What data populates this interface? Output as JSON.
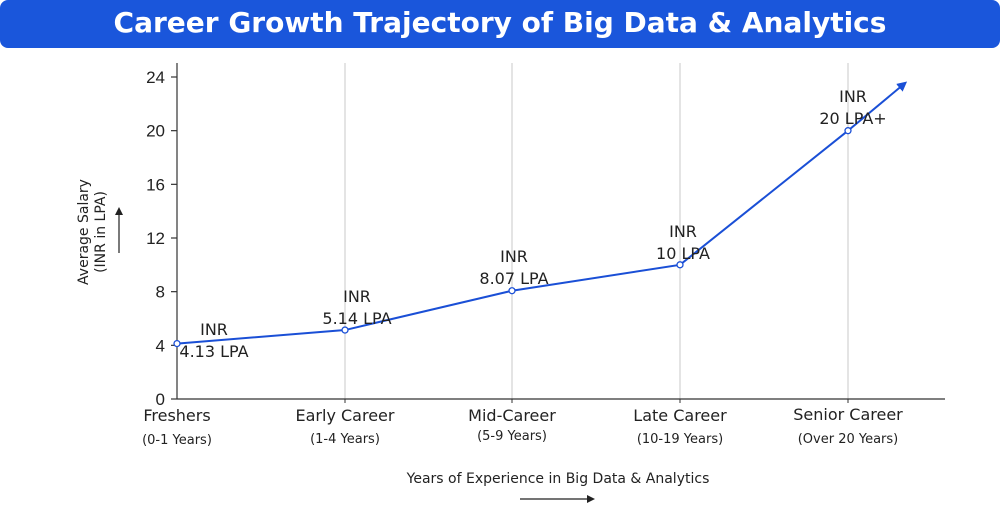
{
  "title": "Career Growth Trajectory of Big Data & Analytics",
  "chart_data": {
    "type": "line",
    "title": "Career Growth Trajectory of Big Data & Analytics",
    "xlabel": "Years of Experience in Big Data & Analytics",
    "ylabel_lines": [
      "Average Salary",
      "(INR in LPA)"
    ],
    "ylim": [
      0,
      24
    ],
    "yticks": [
      0,
      4,
      8,
      12,
      16,
      20,
      24
    ],
    "grid": "vertical",
    "categories": [
      {
        "name": "Freshers",
        "sub": "(0-1 Years)"
      },
      {
        "name": "Early Career",
        "sub": "(1-4 Years)"
      },
      {
        "name": "Mid-Career",
        "sub": "(5-9 Years)"
      },
      {
        "name": "Late Career",
        "sub": "(10-19 Years)"
      },
      {
        "name": "Senior Career",
        "sub": "(Over 20 Years)"
      }
    ],
    "values": [
      4.13,
      5.14,
      8.07,
      10,
      20
    ],
    "labels": [
      [
        "INR",
        "4.13 LPA"
      ],
      [
        "INR",
        "5.14 LPA"
      ],
      [
        "INR",
        "8.07 LPA"
      ],
      [
        "INR",
        "10 LPA"
      ],
      [
        "INR",
        "20 LPA+"
      ]
    ],
    "line_color": "#1a4fd6"
  }
}
